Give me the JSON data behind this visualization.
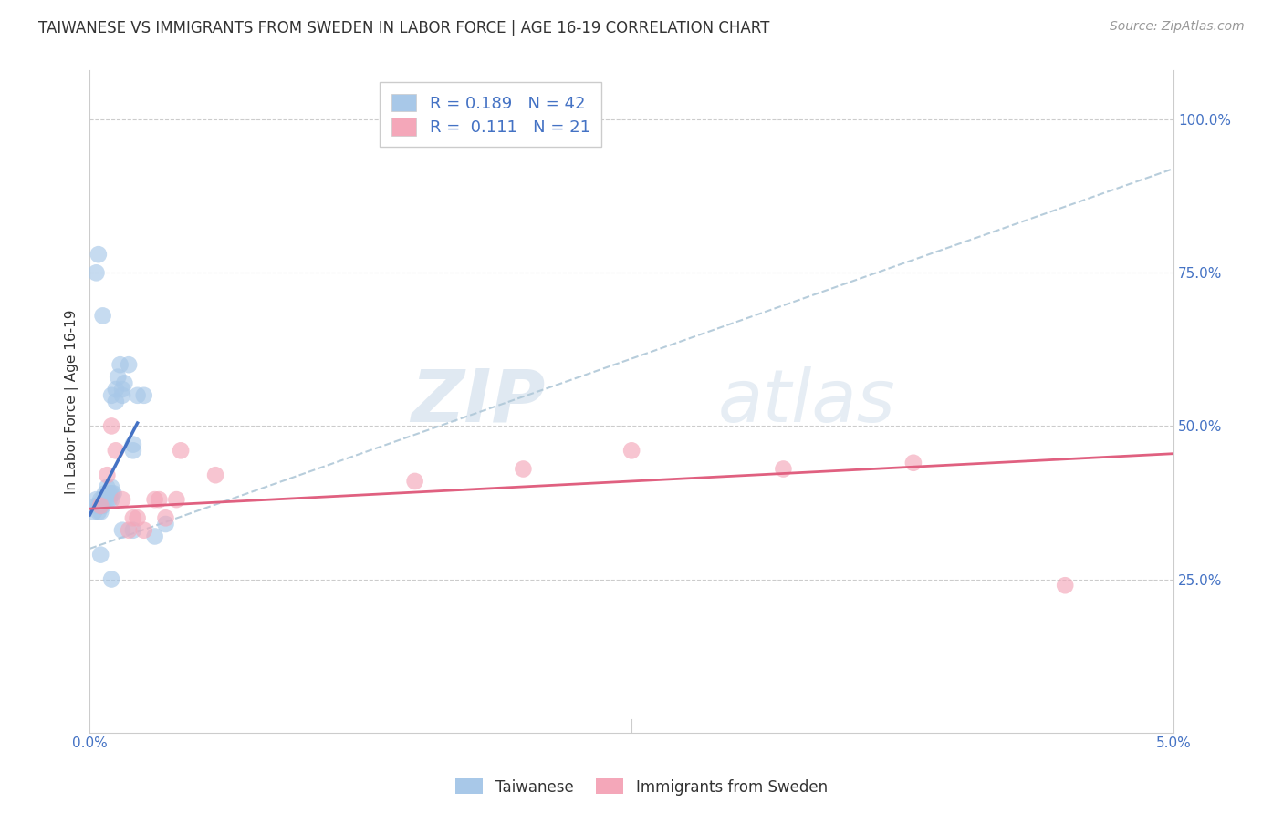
{
  "title": "TAIWANESE VS IMMIGRANTS FROM SWEDEN IN LABOR FORCE | AGE 16-19 CORRELATION CHART",
  "source": "Source: ZipAtlas.com",
  "ylabel_label": "In Labor Force | Age 16-19",
  "y_tick_labels": [
    "25.0%",
    "50.0%",
    "75.0%",
    "100.0%"
  ],
  "y_tick_values": [
    0.25,
    0.5,
    0.75,
    1.0
  ],
  "x_tick_labels": [
    "0.0%",
    "",
    "",
    "",
    "",
    "5.0%"
  ],
  "x_tick_values": [
    0.0,
    0.01,
    0.02,
    0.03,
    0.04,
    0.05
  ],
  "legend_label1": "Taiwanese",
  "legend_label2": "Immigrants from Sweden",
  "R1": "0.189",
  "N1": "42",
  "R2": "0.111",
  "N2": "21",
  "color_blue": "#a8c8e8",
  "color_blue_line": "#4472c4",
  "color_pink": "#f4a7b9",
  "color_pink_line": "#e06080",
  "color_dashed": "#b0c8d8",
  "watermark_zip": "ZIP",
  "watermark_atlas": "atlas",
  "bg_color": "#ffffff",
  "grid_color": "#cccccc",
  "tw_x": [
    0.0002,
    0.0003,
    0.0003,
    0.0004,
    0.0004,
    0.0005,
    0.0005,
    0.0005,
    0.0006,
    0.0006,
    0.0007,
    0.0007,
    0.0008,
    0.0008,
    0.0009,
    0.0009,
    0.001,
    0.001,
    0.001,
    0.0011,
    0.0012,
    0.0012,
    0.0013,
    0.0014,
    0.0015,
    0.0015,
    0.0016,
    0.0018,
    0.002,
    0.002,
    0.0022,
    0.0025,
    0.0003,
    0.0004,
    0.0006,
    0.001,
    0.0015,
    0.002,
    0.003,
    0.0035,
    0.0005,
    0.001
  ],
  "tw_y": [
    0.36,
    0.37,
    0.38,
    0.36,
    0.37,
    0.36,
    0.37,
    0.38,
    0.37,
    0.38,
    0.38,
    0.39,
    0.38,
    0.4,
    0.38,
    0.39,
    0.38,
    0.39,
    0.4,
    0.39,
    0.54,
    0.56,
    0.58,
    0.6,
    0.55,
    0.56,
    0.57,
    0.6,
    0.46,
    0.47,
    0.55,
    0.55,
    0.75,
    0.78,
    0.68,
    0.55,
    0.33,
    0.33,
    0.32,
    0.34,
    0.29,
    0.25
  ],
  "sw_x": [
    0.0005,
    0.0008,
    0.001,
    0.0012,
    0.0015,
    0.0018,
    0.002,
    0.0022,
    0.0025,
    0.003,
    0.0032,
    0.0035,
    0.004,
    0.0042,
    0.0058,
    0.015,
    0.02,
    0.025,
    0.032,
    0.038,
    0.045
  ],
  "sw_y": [
    0.37,
    0.42,
    0.5,
    0.46,
    0.38,
    0.33,
    0.35,
    0.35,
    0.33,
    0.38,
    0.38,
    0.35,
    0.38,
    0.46,
    0.42,
    0.41,
    0.43,
    0.46,
    0.43,
    0.44,
    0.24
  ],
  "blue_line_x0": 0.0,
  "blue_line_y0": 0.355,
  "blue_line_x1": 0.0022,
  "blue_line_y1": 0.505,
  "pink_line_x0": 0.0,
  "pink_line_y0": 0.365,
  "pink_line_x1": 0.05,
  "pink_line_y1": 0.455,
  "dash_line_x0": 0.0,
  "dash_line_y0": 0.3,
  "dash_line_x1": 0.05,
  "dash_line_y1": 0.92
}
